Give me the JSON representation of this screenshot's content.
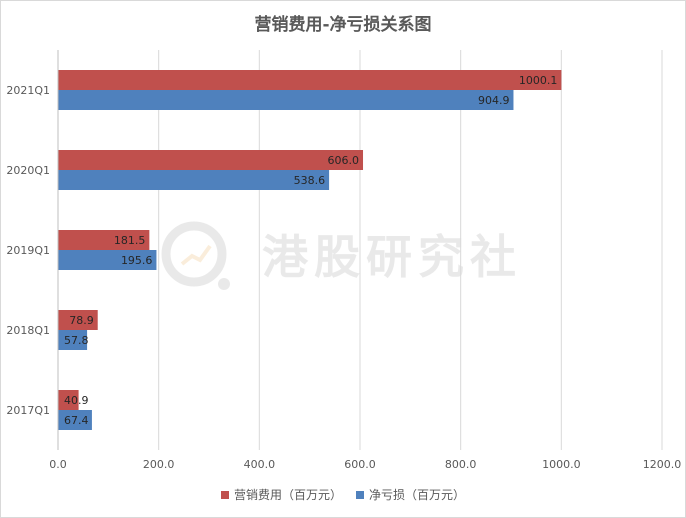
{
  "chart_data": {
    "type": "bar",
    "orientation": "horizontal",
    "title": "营销费用-净亏损关系图",
    "categories": [
      "2021Q1",
      "2020Q1",
      "2019Q1",
      "2018Q1",
      "2017Q1"
    ],
    "series": [
      {
        "name": "营销费用（百万元）",
        "color": "#c0504d",
        "values": [
          1000.1,
          606.0,
          181.5,
          78.9,
          40.9
        ]
      },
      {
        "name": "净亏损（百万元）",
        "color": "#4f81bd",
        "values": [
          904.9,
          538.6,
          195.6,
          57.8,
          67.4
        ]
      }
    ],
    "xlim": [
      0,
      1200
    ],
    "xticks": [
      0,
      200,
      400,
      600,
      800,
      1000,
      1200
    ],
    "tick_format_decimals": 1,
    "grid": true,
    "legend_position": "bottom"
  },
  "watermark": {
    "text": "港股研究社"
  }
}
